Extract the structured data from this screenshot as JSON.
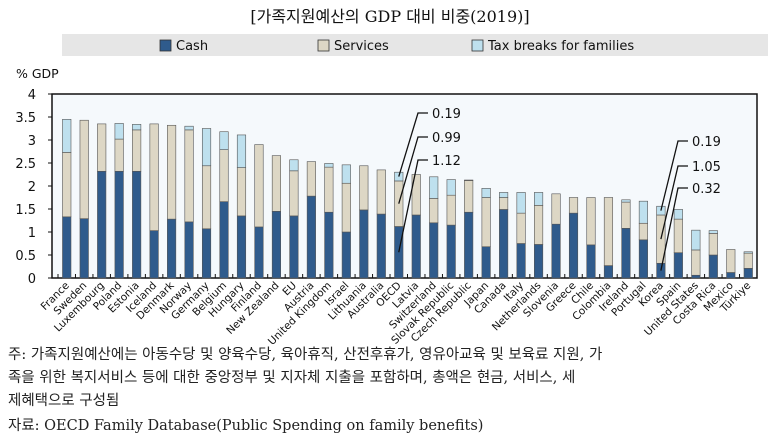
{
  "chart_data": {
    "type": "bar",
    "stacked": true,
    "title": "[가족지원예산의 GDP 대비 비중(2019)]",
    "ylabel": "% GDP",
    "ylim": [
      0,
      4
    ],
    "yticks": [
      "0",
      "0.5",
      "1",
      "1.5",
      "2",
      "2.5",
      "3",
      "3.5",
      "4"
    ],
    "legend_position": "top",
    "categories": [
      "France",
      "Sweden",
      "Luxembourg",
      "Poland",
      "Estonia",
      "Iceland",
      "Denmark",
      "Norway",
      "Germany",
      "Belgium",
      "Hungary",
      "Finland",
      "New Zealand",
      "EU",
      "Austria",
      "United Kingdom",
      "Israel",
      "Lithuania",
      "Australia",
      "OECD",
      "Latvia",
      "Switzerland",
      "Slovak Republic",
      "Czech Republic",
      "Japan",
      "Canada",
      "Italy",
      "Netherlands",
      "Slovenia",
      "Greece",
      "Chile",
      "Colombia",
      "Ireland",
      "Portugal",
      "Korea",
      "Spain",
      "United States",
      "Costa Rica",
      "Mexico",
      "Türkiye"
    ],
    "series": [
      {
        "name": "Cash",
        "color": "#2f5b8c",
        "values": [
          1.33,
          1.29,
          2.32,
          2.32,
          2.32,
          1.03,
          1.28,
          1.22,
          1.07,
          1.66,
          1.35,
          1.11,
          1.45,
          1.35,
          1.78,
          1.43,
          1.0,
          1.48,
          1.39,
          1.12,
          1.37,
          1.2,
          1.15,
          1.43,
          0.68,
          1.49,
          0.75,
          0.73,
          1.17,
          1.41,
          0.72,
          0.27,
          1.08,
          0.83,
          0.32,
          0.55,
          0.06,
          0.5,
          0.12,
          0.21
        ]
      },
      {
        "name": "Services",
        "color": "#ddd7c5",
        "values": [
          1.4,
          2.14,
          1.03,
          0.7,
          0.9,
          2.32,
          2.04,
          2.0,
          1.37,
          1.13,
          1.05,
          1.79,
          1.21,
          0.98,
          0.75,
          0.98,
          1.06,
          0.96,
          0.96,
          0.99,
          0.88,
          0.53,
          0.65,
          0.69,
          1.07,
          0.26,
          0.66,
          0.85,
          0.66,
          0.34,
          1.03,
          1.48,
          0.57,
          0.36,
          1.05,
          0.73,
          0.55,
          0.47,
          0.5,
          0.33
        ]
      },
      {
        "name": "Tax breaks for families",
        "color": "#bee0ee",
        "values": [
          0.72,
          0,
          0,
          0.34,
          0.12,
          0,
          0,
          0.08,
          0.81,
          0.39,
          0.71,
          0,
          0,
          0.24,
          0,
          0.08,
          0.4,
          0,
          0,
          0.19,
          0,
          0.47,
          0.34,
          0.01,
          0.2,
          0.11,
          0.45,
          0.28,
          0,
          0,
          0,
          0,
          0.05,
          0.48,
          0.19,
          0.21,
          0.43,
          0.06,
          0,
          0.03
        ]
      }
    ],
    "annotations": [
      {
        "category": "OECD",
        "labels": [
          "0.19",
          "0.99",
          "1.12"
        ]
      },
      {
        "category": "Korea",
        "labels": [
          "0.19",
          "1.05",
          "0.32"
        ]
      }
    ]
  },
  "notes": {
    "line1": "주: 가족지원예산에는 아동수당 및 양육수당, 육아휴직, 산전후휴가, 영유아교육 및 보육료 지원, 가",
    "line2": "족을 위한 복지서비스 등에 대한 중앙정부 및 지자체 지출을 포함하며, 총액은 현금, 서비스, 세",
    "line3": "제혜택으로 구성됨",
    "source": "자료: OECD Family Database(Public Spending on family benefits)"
  }
}
